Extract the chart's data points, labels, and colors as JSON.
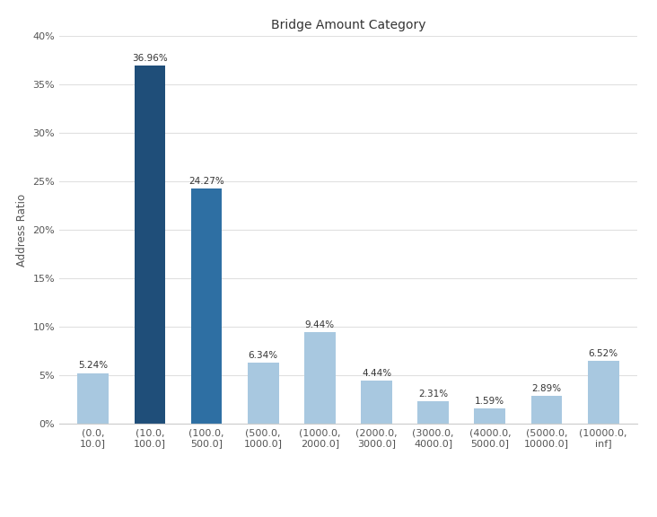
{
  "title": "Bridge Amount Category",
  "xlabel": "",
  "ylabel": "Address Ratio",
  "categories": [
    "(0.0,\n10.0]",
    "(10.0,\n100.0]",
    "(100.0,\n500.0]",
    "(500.0,\n1000.0]",
    "(1000.0,\n2000.0]",
    "(2000.0,\n3000.0]",
    "(3000.0,\n4000.0]",
    "(4000.0,\n5000.0]",
    "(5000.0,\n10000.0]",
    "(10000.0,\ninf]"
  ],
  "values": [
    5.24,
    36.96,
    24.27,
    6.34,
    9.44,
    4.44,
    2.31,
    1.59,
    2.89,
    6.52
  ],
  "labels": [
    "5.24%",
    "36.96%",
    "24.27%",
    "6.34%",
    "9.44%",
    "4.44%",
    "2.31%",
    "1.59%",
    "2.89%",
    "6.52%"
  ],
  "bar_colors": [
    "#a8c8e0",
    "#1f4e79",
    "#2e6fa3",
    "#a8c8e0",
    "#a8c8e0",
    "#a8c8e0",
    "#a8c8e0",
    "#a8c8e0",
    "#a8c8e0",
    "#a8c8e0"
  ],
  "ylim": [
    0,
    40
  ],
  "yticks": [
    0,
    5,
    10,
    15,
    20,
    25,
    30,
    35,
    40
  ],
  "background_color": "#ffffff",
  "grid_color": "#e0e0e0",
  "title_fontsize": 10,
  "axis_label_fontsize": 8.5,
  "tick_fontsize": 8,
  "bar_label_fontsize": 7.5,
  "bar_width": 0.55
}
